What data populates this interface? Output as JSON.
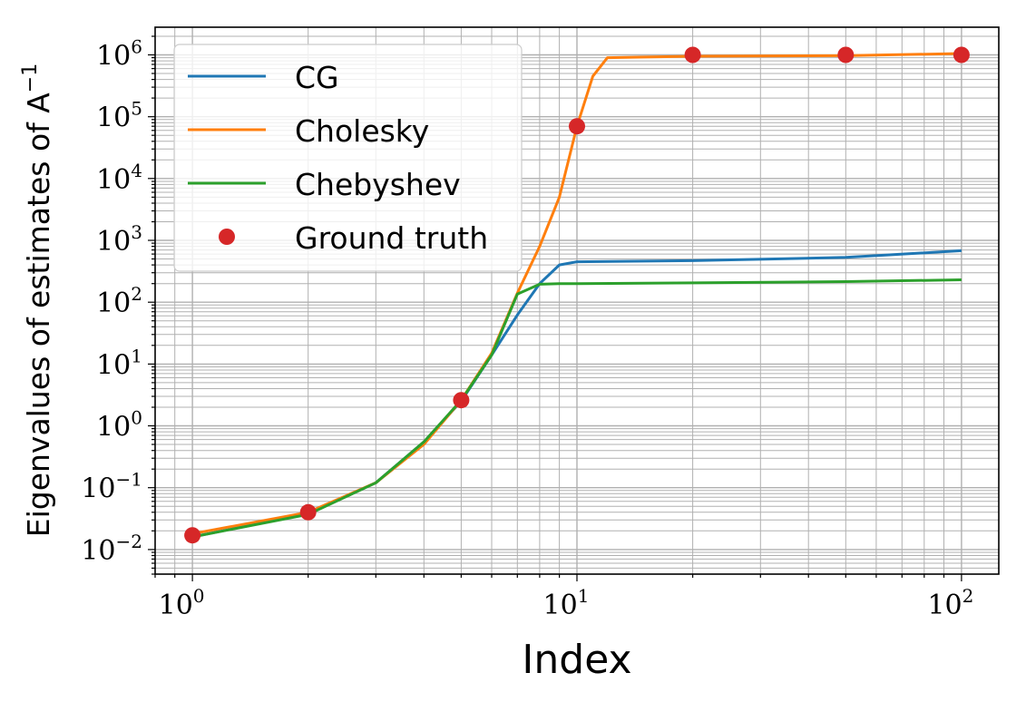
{
  "chart_data": {
    "type": "line",
    "xlabel": "Index",
    "ylabel": "Eigenvalues of estimates of A",
    "ylabel_superscript": "−1",
    "xscale": "log",
    "yscale": "log",
    "xlim": [
      0.8,
      125
    ],
    "ylim": [
      0.004,
      2800000
    ],
    "grid": "on (major and minor)",
    "legend_placement": "top-left",
    "x_ticks": [
      {
        "base": "10",
        "exp": "0",
        "value": 1
      },
      {
        "base": "10",
        "exp": "1",
        "value": 10
      },
      {
        "base": "10",
        "exp": "2",
        "value": 100
      }
    ],
    "y_ticks": [
      {
        "base": "10",
        "exp": "−2",
        "value": 0.01
      },
      {
        "base": "10",
        "exp": "−1",
        "value": 0.1
      },
      {
        "base": "10",
        "exp": "0",
        "value": 1
      },
      {
        "base": "10",
        "exp": "1",
        "value": 10
      },
      {
        "base": "10",
        "exp": "2",
        "value": 100
      },
      {
        "base": "10",
        "exp": "3",
        "value": 1000
      },
      {
        "base": "10",
        "exp": "4",
        "value": 10000
      },
      {
        "base": "10",
        "exp": "5",
        "value": 100000
      },
      {
        "base": "10",
        "exp": "6",
        "value": 1000000
      }
    ],
    "series": [
      {
        "name": "CG",
        "color": "#1f77b4",
        "kind": "line",
        "x": [
          1,
          2,
          3,
          4,
          5,
          6,
          7,
          8,
          9,
          10,
          20,
          50,
          100
        ],
        "y": [
          0.016,
          0.038,
          0.12,
          0.55,
          2.5,
          14,
          62,
          200,
          400,
          450,
          470,
          530,
          680
        ]
      },
      {
        "name": "Cholesky",
        "color": "#ff7f0e",
        "kind": "line",
        "x": [
          1,
          2,
          3,
          4,
          5,
          6,
          7,
          8,
          9,
          10,
          11,
          12,
          20,
          50,
          100
        ],
        "y": [
          0.018,
          0.04,
          0.12,
          0.5,
          2.6,
          15,
          140,
          800,
          5000,
          70000,
          450000,
          900000,
          950000,
          970000,
          1050000
        ]
      },
      {
        "name": "Chebyshev",
        "color": "#2ca02c",
        "kind": "line",
        "x": [
          1,
          2,
          3,
          4,
          5,
          6,
          7,
          8,
          9,
          10,
          20,
          50,
          100
        ],
        "y": [
          0.016,
          0.037,
          0.12,
          0.55,
          2.6,
          14,
          135,
          195,
          200,
          200,
          205,
          215,
          230
        ]
      },
      {
        "name": "Ground truth",
        "color": "#d62728",
        "kind": "points",
        "x": [
          1,
          2,
          5,
          10,
          20,
          50,
          100
        ],
        "y": [
          0.017,
          0.04,
          2.6,
          70000,
          1000000,
          1000000,
          1000000
        ]
      }
    ]
  }
}
